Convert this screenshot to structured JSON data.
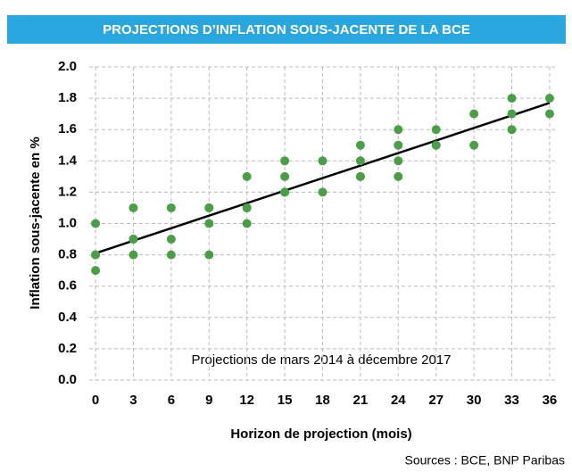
{
  "chart_data": {
    "type": "scatter",
    "title": "PROJECTIONS D’INFLATION SOUS-JACENTE DE LA BCE",
    "x_label": "Horizon de projection (mois)",
    "y_label": "Inflation sous-jacente en  %",
    "annotation": "Projections de mars 2014 à décembre 2017",
    "source": "Sources : BCE, BNP Paribas",
    "color": "#4a9e48",
    "x": [
      0,
      0,
      0,
      0,
      3,
      3,
      3,
      3,
      6,
      6,
      6,
      9,
      9,
      9,
      9,
      12,
      12,
      12,
      12,
      15,
      15,
      15,
      15,
      18,
      18,
      21,
      21,
      21,
      21,
      24,
      24,
      24,
      24,
      27,
      27,
      27,
      30,
      30,
      33,
      33,
      33,
      36,
      36
    ],
    "y": [
      1.0,
      0.8,
      0.8,
      0.7,
      1.1,
      0.9,
      0.9,
      0.8,
      1.1,
      0.9,
      0.8,
      1.1,
      1.1,
      1.0,
      0.8,
      1.3,
      1.1,
      1.1,
      1.0,
      1.4,
      1.3,
      1.2,
      1.2,
      1.4,
      1.2,
      1.5,
      1.4,
      1.3,
      1.3,
      1.6,
      1.5,
      1.4,
      1.3,
      1.6,
      1.5,
      1.5,
      1.7,
      1.5,
      1.8,
      1.7,
      1.6,
      1.8,
      1.7
    ],
    "trendline": {
      "x": [
        0,
        36
      ],
      "y": [
        0.81,
        1.77
      ],
      "color": "#000000"
    },
    "xlim": [
      -0.5,
      36.5
    ],
    "xticks": [
      0,
      3,
      6,
      9,
      12,
      15,
      18,
      21,
      24,
      27,
      30,
      33,
      36
    ],
    "ylim": [
      0,
      2.0
    ],
    "yticks": [
      {
        "value": 0,
        "label": "0.0"
      },
      0.2,
      0.4,
      0.6,
      0.8,
      {
        "value": 1,
        "label": "1.0"
      },
      1.2,
      1.4,
      1.6,
      1.8,
      {
        "value": 2,
        "label": "2.0"
      }
    ],
    "grid": true
  }
}
